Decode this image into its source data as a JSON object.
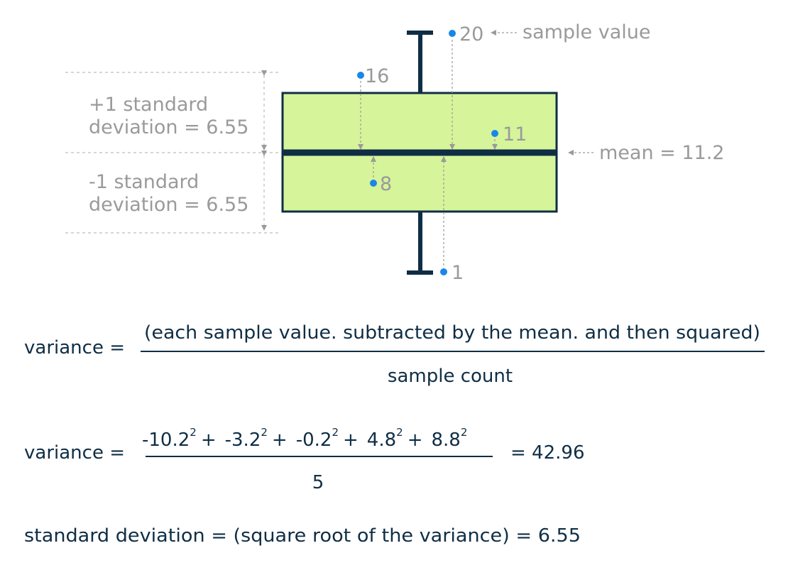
{
  "colors": {
    "box_fill": "#d6f49a",
    "box_stroke": "#0f2e45",
    "point": "#1a86e8",
    "annotation": "#9a9a9a",
    "text": "#0f2e45"
  },
  "diagram": {
    "sample_points": [
      {
        "label": "20"
      },
      {
        "label": "16"
      },
      {
        "label": "11"
      },
      {
        "label": "8"
      },
      {
        "label": "1"
      }
    ],
    "sample_value_annotation": "sample value",
    "mean_annotation": "mean = 11.2",
    "plus_sd": {
      "line1": "+1 standard",
      "line2": "deviation = 6.55"
    },
    "minus_sd": {
      "line1": "-1 standard",
      "line2": "deviation = 6.55"
    }
  },
  "formulas": {
    "variance_label_1": "variance =",
    "numerator_1": "(each sample value. subtracted by the mean. and then squared)",
    "denominator_1": "sample count",
    "variance_label_2": "variance =",
    "terms": [
      {
        "base": "-10.2",
        "exp": "2",
        "op": "+"
      },
      {
        "base": "-3.2",
        "exp": "2",
        "op": "+"
      },
      {
        "base": "-0.2",
        "exp": "2",
        "op": "+"
      },
      {
        "base": "4.8",
        "exp": "2",
        "op": "+"
      },
      {
        "base": "8.8",
        "exp": "2",
        "op": ""
      }
    ],
    "denominator_2": "5",
    "result_2": "= 42.96",
    "std_dev_line": "standard deviation = (square root of the variance) = 6.55"
  }
}
